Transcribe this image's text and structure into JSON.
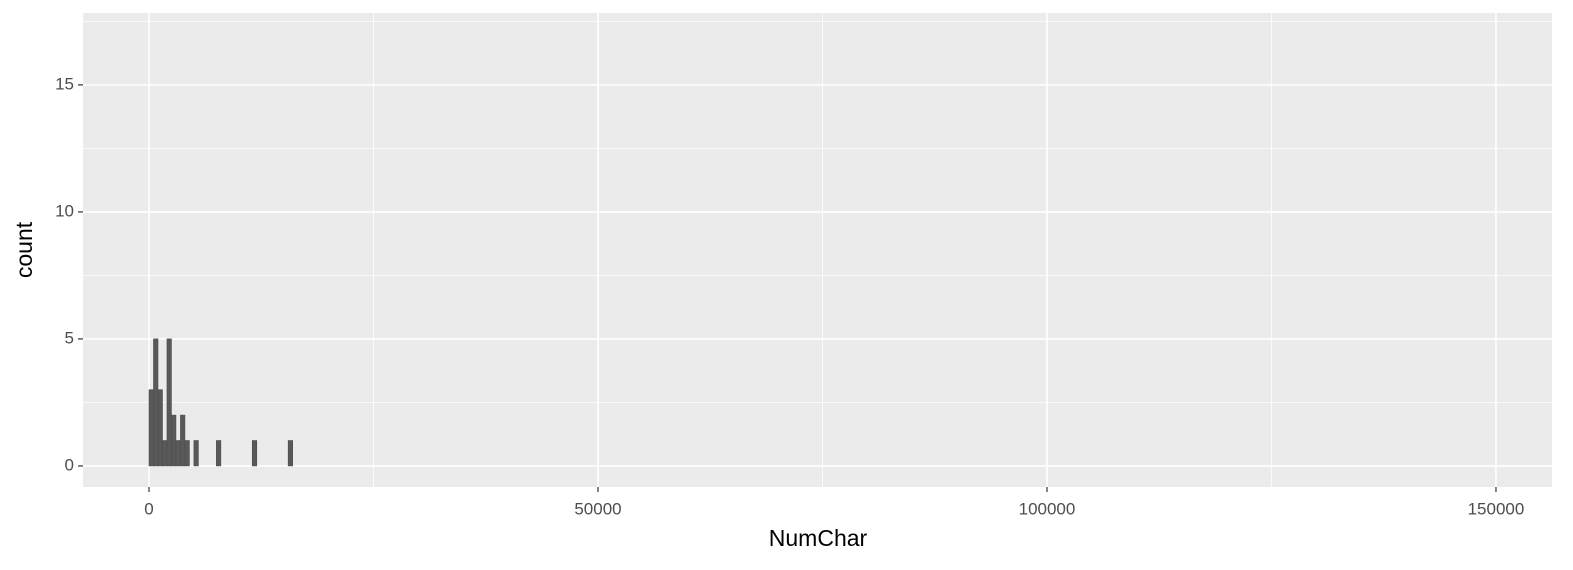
{
  "chart_data": {
    "type": "histogram",
    "x_label": "NumChar",
    "y_label": "count",
    "bins": [
      0,
      500,
      1000,
      1500,
      2000,
      2500,
      3000,
      3500,
      4000,
      4500,
      5000,
      5500,
      6000,
      6500,
      7000,
      7500,
      8000,
      8500,
      9000,
      9500,
      10000,
      10500,
      11000,
      11500,
      12000,
      12500,
      13000,
      13500,
      14000,
      14500,
      15000,
      15500,
      16000
    ],
    "values": [
      3,
      5,
      3,
      1,
      5,
      2,
      1,
      2,
      1,
      0,
      1,
      0,
      0,
      0,
      0,
      1,
      0,
      0,
      0,
      0,
      0,
      0,
      0,
      1,
      0,
      0,
      0,
      0,
      0,
      0,
      0,
      1
    ],
    "color": "#595959",
    "xlim": [
      -7350,
      156240
    ],
    "ylim": [
      -0.83,
      17.83
    ],
    "xticks": [
      0,
      50000,
      100000,
      150000
    ],
    "yticks": [
      0,
      5,
      10,
      15
    ],
    "x_minor_ticks": [
      25000,
      75000,
      125000
    ],
    "y_minor_ticks": [
      2.5,
      7.5,
      12.5,
      17.5
    ],
    "grid": true
  }
}
